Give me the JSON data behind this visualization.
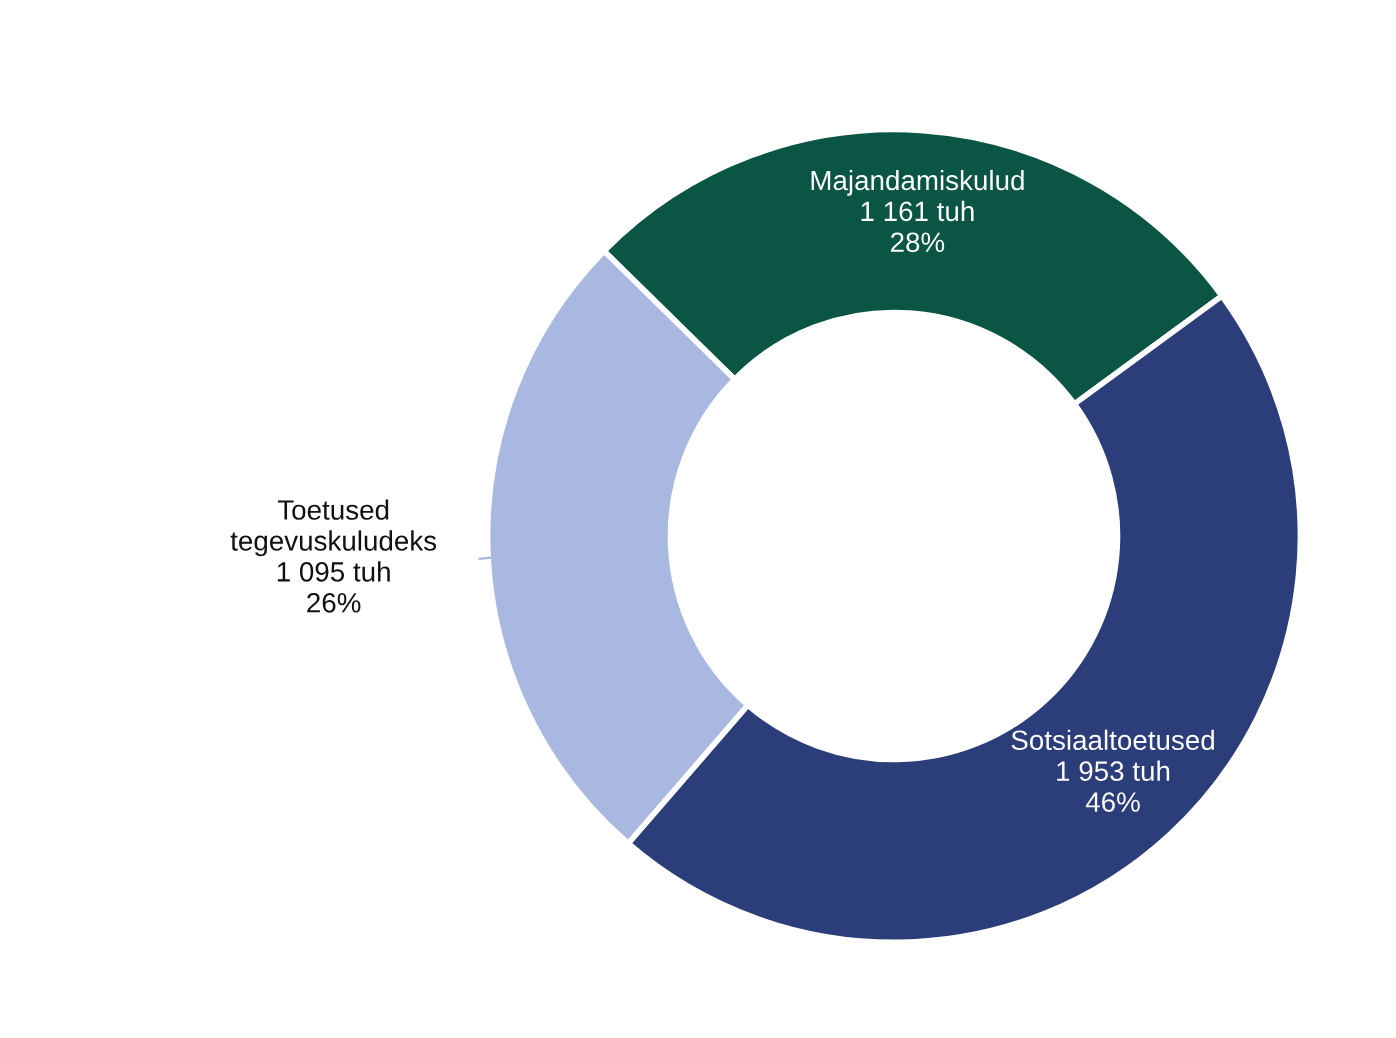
{
  "chart_data": {
    "type": "donut",
    "categories": [
      "Majandamiskulud",
      "Sotsiaaltoetused",
      "Toetused tegevuskuludeks"
    ],
    "values": [
      1161,
      1953,
      1095
    ],
    "value_labels": [
      "1 161 tuh\n28%",
      "1 953 tuh\n46%",
      "1 095 tuh\n26%"
    ],
    "colors": [
      "#0a5543",
      "#2c3e7a",
      "#a9b8e0"
    ],
    "legend": false
  }
}
